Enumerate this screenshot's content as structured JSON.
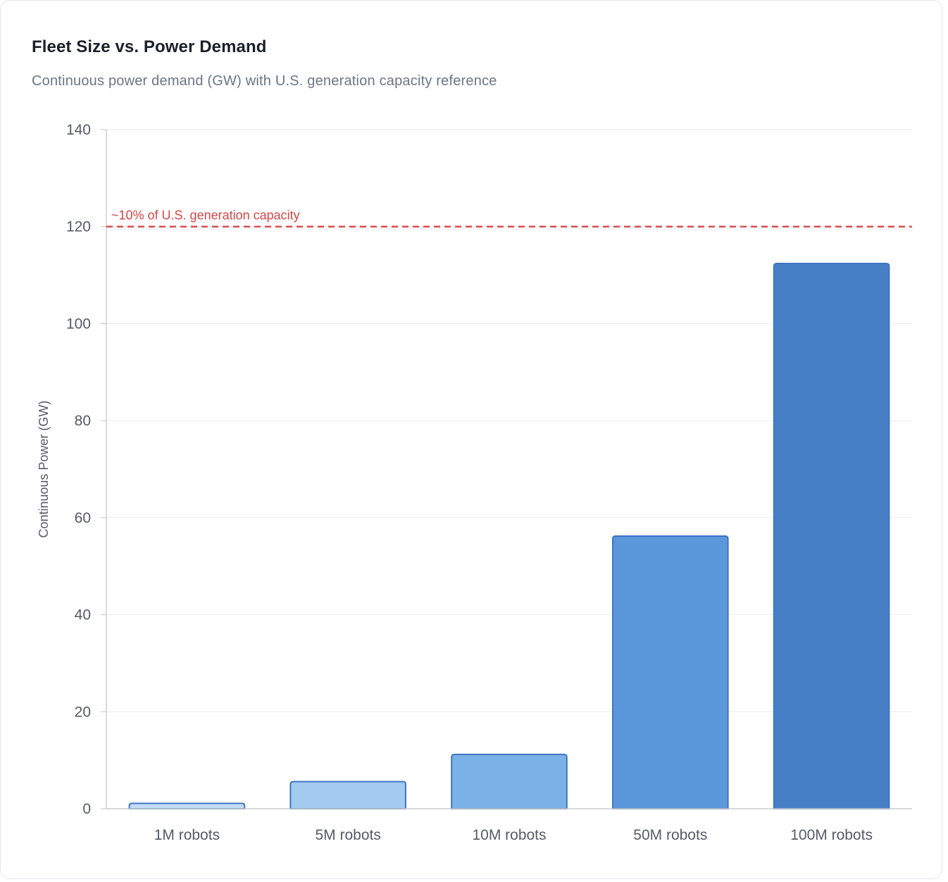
{
  "header": {
    "title": "Fleet Size vs. Power Demand",
    "subtitle": "Continuous power demand (GW) with U.S. generation capacity reference"
  },
  "colors": {
    "bar_fills": [
      "#c5dcf5",
      "#a3caf0",
      "#7ab1e7",
      "#5b97db",
      "#4880c8"
    ],
    "bar_stroke": "#3f73c4",
    "reference_line": "#d64545",
    "grid": "#eeeeee",
    "axis": "#cccccc"
  },
  "chart_data": {
    "type": "bar",
    "categories": [
      "1M robots",
      "5M robots",
      "10M robots",
      "50M robots",
      "100M robots"
    ],
    "values": [
      1.1,
      5.6,
      11.2,
      56.2,
      112.4
    ],
    "title": "",
    "xlabel": "",
    "ylabel": "Continuous Power (GW)",
    "ylim": [
      0,
      140
    ],
    "yticks": [
      0,
      20,
      40,
      60,
      80,
      100,
      120,
      140
    ],
    "grid": true,
    "legend": "none",
    "annotations": [
      {
        "type": "horizontal-line",
        "y": 120,
        "style": "dashed",
        "label": "~10% of U.S. generation capacity"
      }
    ]
  }
}
